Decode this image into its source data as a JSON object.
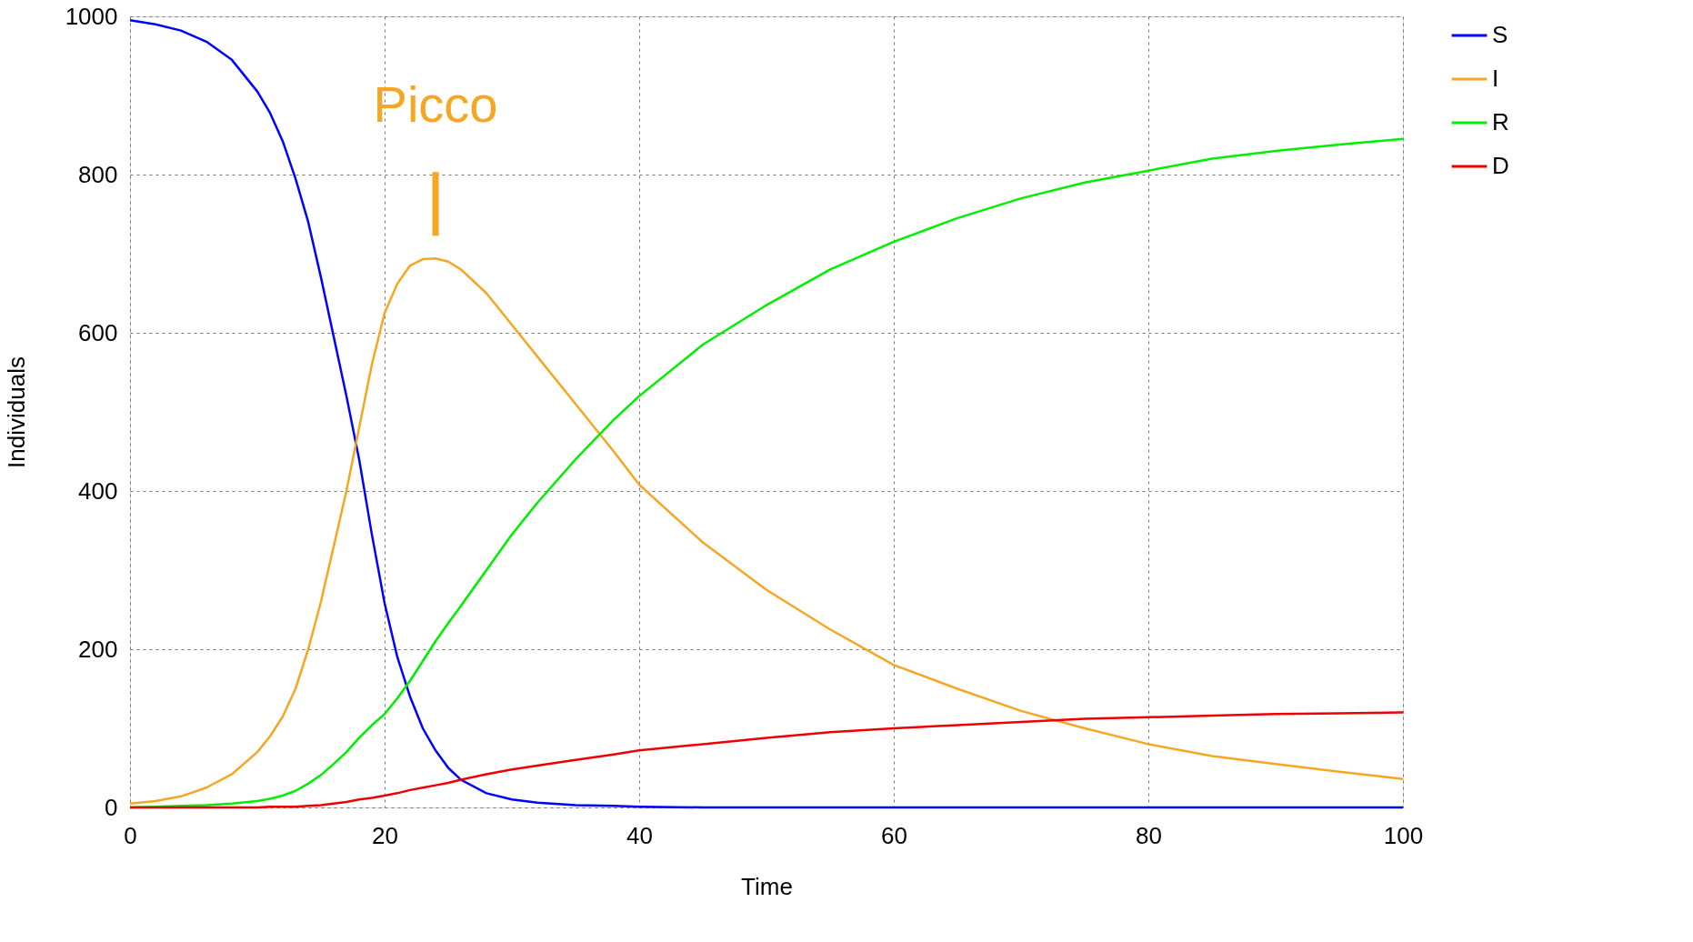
{
  "chart_data": {
    "type": "line",
    "xlabel": "Time",
    "ylabel": "Individuals",
    "x": [
      0,
      2,
      4,
      6,
      8,
      10,
      11,
      12,
      13,
      14,
      15,
      16,
      17,
      18,
      19,
      20,
      21,
      22,
      23,
      24,
      25,
      26,
      28,
      30,
      32,
      35,
      38,
      40,
      45,
      50,
      55,
      60,
      65,
      70,
      75,
      80,
      85,
      90,
      95,
      100
    ],
    "series": [
      {
        "name": "S",
        "color": "#0000ff",
        "values": [
          995,
          990,
          982,
          968,
          945,
          905,
          878,
          842,
          795,
          740,
          670,
          595,
          520,
          440,
          345,
          258,
          190,
          140,
          100,
          72,
          50,
          35,
          18,
          10,
          6,
          3,
          2,
          1,
          0,
          0,
          0,
          0,
          0,
          0,
          0,
          0,
          0,
          0,
          0,
          0
        ]
      },
      {
        "name": "I",
        "color": "#f5a623",
        "values": [
          5,
          8,
          14,
          25,
          42,
          70,
          90,
          115,
          150,
          200,
          260,
          330,
          400,
          480,
          560,
          625,
          662,
          685,
          693,
          694,
          690,
          680,
          650,
          610,
          570,
          510,
          450,
          408,
          335,
          275,
          225,
          180,
          150,
          122,
          100,
          80,
          65,
          55,
          45,
          36
        ]
      },
      {
        "name": "R",
        "color": "#00ee00",
        "values": [
          0,
          1,
          2,
          3,
          5,
          8,
          11,
          15,
          21,
          30,
          41,
          55,
          70,
          88,
          104,
          118,
          138,
          160,
          185,
          210,
          233,
          255,
          300,
          345,
          385,
          440,
          490,
          520,
          585,
          635,
          680,
          715,
          745,
          770,
          790,
          805,
          820,
          830,
          838,
          845
        ]
      },
      {
        "name": "D",
        "color": "#ee0000",
        "values": [
          0,
          0,
          0,
          0,
          0,
          0,
          1,
          1,
          1,
          2,
          3,
          5,
          7,
          10,
          12,
          15,
          18,
          22,
          25,
          28,
          31,
          35,
          42,
          48,
          53,
          60,
          67,
          72,
          80,
          88,
          95,
          100,
          104,
          108,
          112,
          114,
          116,
          118,
          119,
          120
        ]
      }
    ],
    "xlim": [
      0,
      100
    ],
    "xticks": [
      0,
      20,
      40,
      60,
      80,
      100
    ],
    "ylim": [
      0,
      1000
    ],
    "yticks": [
      0,
      200,
      400,
      600,
      800,
      1000
    ],
    "grid": true,
    "legend": "top right",
    "line_style": "solid",
    "marker": "none",
    "annotations": [
      {
        "text": "Picco",
        "x": 24,
        "y": 694
      }
    ]
  }
}
